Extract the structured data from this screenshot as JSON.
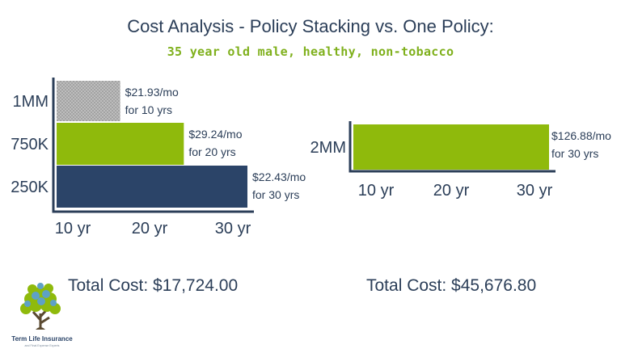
{
  "header": {
    "title": "Cost Analysis - Policy Stacking vs. One Policy:",
    "subtitle": "35 year old male, healthy, non-tobacco"
  },
  "colors": {
    "navy": "#2b4468",
    "green": "#8fba0c",
    "gray": "#a9a9a9",
    "axis": "#2b3e58",
    "accent_text": "#7fb01c"
  },
  "chart_data": [
    {
      "type": "bar",
      "orientation": "horizontal",
      "title": "Policy Stacking",
      "categories": [
        "1MM",
        "750K",
        "250K"
      ],
      "values": [
        10,
        20,
        30
      ],
      "colors": [
        "#a9a9a9",
        "#8fba0c",
        "#2b4468"
      ],
      "data_labels": [
        [
          "$21.93/mo",
          "for 10 yrs"
        ],
        [
          "$29.24/mo",
          "for 20 yrs"
        ],
        [
          "$22.43/mo",
          "for 30 yrs"
        ]
      ],
      "xticks": [
        "10 yr",
        "20 yr",
        "30 yr"
      ],
      "xlim": [
        0,
        30
      ],
      "total": "Total Cost: $17,724.00"
    },
    {
      "type": "bar",
      "orientation": "horizontal",
      "title": "One Policy",
      "categories": [
        "2MM"
      ],
      "values": [
        30
      ],
      "colors": [
        "#8fba0c"
      ],
      "data_labels": [
        [
          "$126.88/mo",
          "for 30 yrs"
        ]
      ],
      "xticks": [
        "10 yr",
        "20 yr",
        "30 yr"
      ],
      "xlim": [
        0,
        30
      ],
      "total": "Total Cost: $45,676.80"
    }
  ],
  "logo": {
    "line1": "Term Life Insurance",
    "line2": "and Final Expense Experts"
  }
}
